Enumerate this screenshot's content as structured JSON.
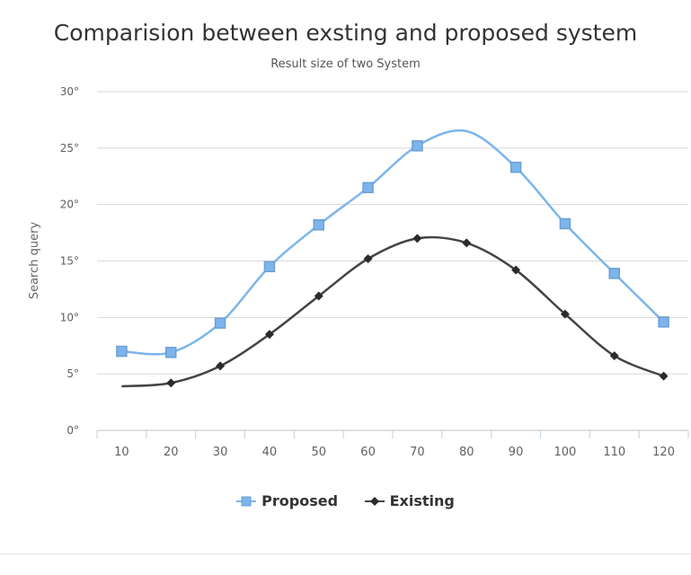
{
  "chart_data": {
    "type": "line",
    "title": "Comparision between exsting and proposed system",
    "subtitle": "Result size of two System",
    "ylabel": "Search query",
    "xlabel": "",
    "categories": [
      "10",
      "20",
      "30",
      "40",
      "50",
      "60",
      "70",
      "80",
      "90",
      "100",
      "110",
      "120"
    ],
    "ylim": [
      0,
      30
    ],
    "yticks": [
      0,
      5,
      10,
      15,
      20,
      25,
      30
    ],
    "ytick_labels": [
      "0°",
      "5°",
      "10°",
      "15°",
      "20°",
      "25°",
      "30°"
    ],
    "grid": true,
    "legend_position": "bottom",
    "series": [
      {
        "name": "Proposed",
        "values": [
          7.0,
          6.9,
          9.5,
          14.5,
          18.2,
          21.5,
          25.2,
          26.5,
          23.3,
          18.3,
          13.9,
          9.6
        ],
        "markers": [
          true,
          true,
          true,
          true,
          true,
          true,
          true,
          false,
          true,
          true,
          true,
          true
        ],
        "color": "#7cb5ec",
        "marker_color": "#6d9fd3",
        "marker": "square"
      },
      {
        "name": "Existing",
        "values": [
          3.9,
          4.2,
          5.7,
          8.5,
          11.9,
          15.2,
          17.0,
          16.6,
          14.2,
          10.3,
          6.6,
          4.8
        ],
        "markers": [
          false,
          true,
          true,
          true,
          true,
          true,
          true,
          true,
          true,
          true,
          true,
          true
        ],
        "color": "#434348",
        "marker_color": "#2b2b2b",
        "marker": "diamond"
      }
    ]
  }
}
